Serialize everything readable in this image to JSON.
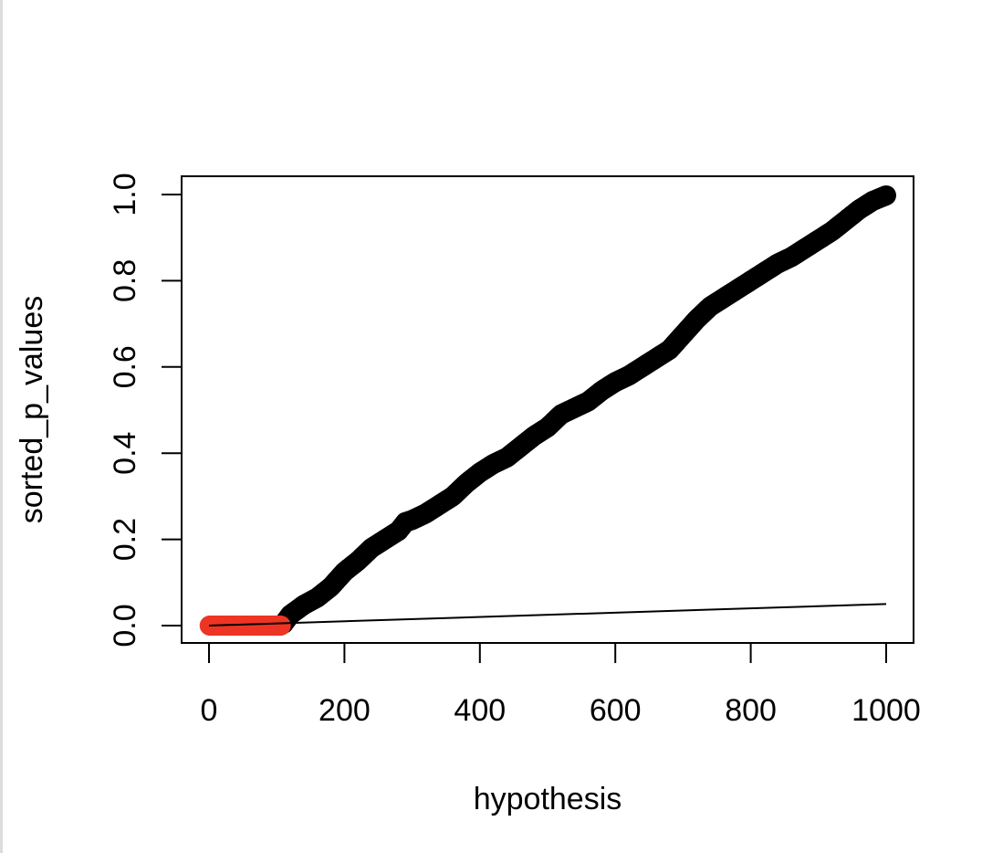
{
  "chart_data": {
    "type": "scatter",
    "title": "",
    "xlabel": "hypothesis",
    "ylabel": "sorted_p_values",
    "xlim": [
      0,
      1000
    ],
    "ylim": [
      0,
      1.0
    ],
    "x_ticks": [
      0,
      200,
      400,
      600,
      800,
      1000
    ],
    "x_tick_labels": [
      "0",
      "200",
      "400",
      "600",
      "800",
      "1000"
    ],
    "y_ticks": [
      0,
      0.2,
      0.4,
      0.6,
      0.8,
      1.0
    ],
    "y_tick_labels": [
      "0.0",
      "0.2",
      "0.4",
      "0.6",
      "0.8",
      "1.0"
    ],
    "grid": false,
    "series": [
      {
        "color": "#000000",
        "marker": "filled-circle",
        "points": [
          [
            110,
            0.004
          ],
          [
            120,
            0.025
          ],
          [
            140,
            0.048
          ],
          [
            160,
            0.065
          ],
          [
            180,
            0.09
          ],
          [
            200,
            0.125
          ],
          [
            220,
            0.15
          ],
          [
            240,
            0.18
          ],
          [
            260,
            0.2
          ],
          [
            280,
            0.22
          ],
          [
            290,
            0.24
          ],
          [
            300,
            0.245
          ],
          [
            320,
            0.26
          ],
          [
            340,
            0.28
          ],
          [
            360,
            0.3
          ],
          [
            380,
            0.33
          ],
          [
            400,
            0.355
          ],
          [
            420,
            0.375
          ],
          [
            440,
            0.39
          ],
          [
            460,
            0.415
          ],
          [
            480,
            0.44
          ],
          [
            500,
            0.46
          ],
          [
            520,
            0.49
          ],
          [
            540,
            0.505
          ],
          [
            560,
            0.52
          ],
          [
            580,
            0.545
          ],
          [
            600,
            0.565
          ],
          [
            620,
            0.58
          ],
          [
            640,
            0.6
          ],
          [
            660,
            0.62
          ],
          [
            680,
            0.64
          ],
          [
            700,
            0.675
          ],
          [
            720,
            0.71
          ],
          [
            740,
            0.74
          ],
          [
            760,
            0.76
          ],
          [
            780,
            0.78
          ],
          [
            800,
            0.8
          ],
          [
            820,
            0.82
          ],
          [
            840,
            0.84
          ],
          [
            860,
            0.855
          ],
          [
            880,
            0.875
          ],
          [
            900,
            0.895
          ],
          [
            920,
            0.915
          ],
          [
            940,
            0.94
          ],
          [
            960,
            0.965
          ],
          [
            980,
            0.985
          ],
          [
            1000,
            0.998
          ]
        ]
      },
      {
        "color": "#ee3524",
        "marker": "filled-circle",
        "x_range": [
          1,
          106
        ],
        "y_value": 0.0
      }
    ],
    "reference_line": {
      "color": "#000000",
      "x": [
        0,
        1000
      ],
      "y": [
        0,
        0.05
      ]
    }
  }
}
